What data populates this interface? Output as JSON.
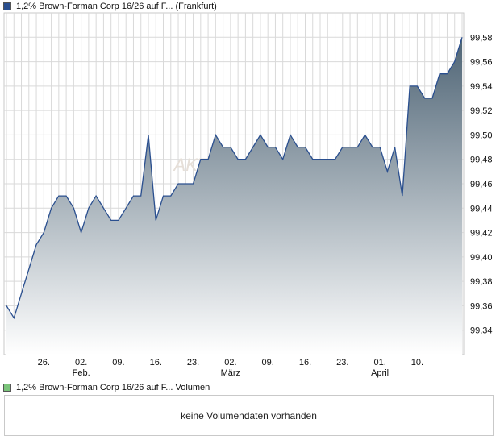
{
  "price_legend": "1,2% Brown-Forman Corp 16/26 auf F... (Frankfurt)",
  "volume_legend": "1,2% Brown-Forman Corp 16/26 auf F... Volumen",
  "volume_message": "keine Volumendaten vorhanden",
  "watermark": "AKTI",
  "colors": {
    "line": "#2a4f8f",
    "fill_top": "#4e6475",
    "fill_bottom": "#ffffff",
    "grid": "#d9d9d9"
  },
  "chart_data": {
    "type": "area",
    "title": "",
    "xlabel": "",
    "ylabel": "",
    "ylim": [
      99.32,
      99.6
    ],
    "grid": true,
    "y_ticks": [
      "99,34",
      "99,36",
      "99,38",
      "99,40",
      "99,42",
      "99,44",
      "99,46",
      "99,48",
      "99,50",
      "99,52",
      "99,54",
      "99,56",
      "99,58"
    ],
    "x_ticks": [
      {
        "label": "26.",
        "sub": "",
        "index": 5
      },
      {
        "label": "02.",
        "sub": "Feb.",
        "index": 10
      },
      {
        "label": "09.",
        "sub": "",
        "index": 15
      },
      {
        "label": "16.",
        "sub": "",
        "index": 20
      },
      {
        "label": "23.",
        "sub": "",
        "index": 25
      },
      {
        "label": "02.",
        "sub": "März",
        "index": 30
      },
      {
        "label": "09.",
        "sub": "",
        "index": 35
      },
      {
        "label": "16.",
        "sub": "",
        "index": 40
      },
      {
        "label": "23.",
        "sub": "",
        "index": 45
      },
      {
        "label": "01.",
        "sub": "April",
        "index": 50
      },
      {
        "label": "10.",
        "sub": "",
        "index": 55
      }
    ],
    "values": [
      99.36,
      99.35,
      99.37,
      99.39,
      99.41,
      99.42,
      99.44,
      99.45,
      99.45,
      99.44,
      99.42,
      99.44,
      99.45,
      99.44,
      99.43,
      99.43,
      99.44,
      99.45,
      99.45,
      99.5,
      99.43,
      99.45,
      99.45,
      99.46,
      99.46,
      99.46,
      99.48,
      99.48,
      99.5,
      99.49,
      99.49,
      99.48,
      99.48,
      99.49,
      99.5,
      99.49,
      99.49,
      99.48,
      99.5,
      99.49,
      99.49,
      99.48,
      99.48,
      99.48,
      99.48,
      99.49,
      99.49,
      99.49,
      99.5,
      99.49,
      99.49,
      99.47,
      99.49,
      99.45,
      99.54,
      99.54,
      99.53,
      99.53,
      99.55,
      99.55,
      99.56,
      99.58
    ]
  }
}
